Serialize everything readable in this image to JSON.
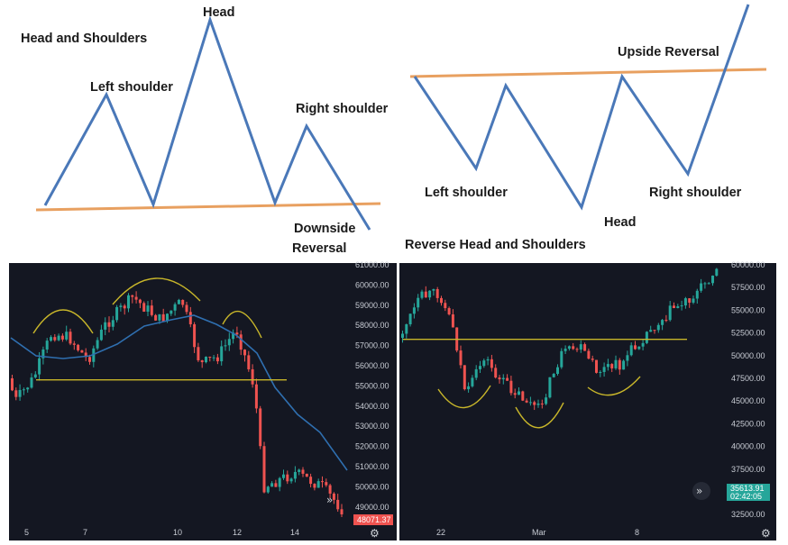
{
  "top_left": {
    "title": "Head and Shoulders",
    "head": "Head",
    "left_shoulder": "Left shoulder",
    "right_shoulder": "Right shoulder",
    "reversal_line1": "Downside",
    "reversal_line2": "Reversal"
  },
  "top_right": {
    "title": "Reverse Head and Shoulders",
    "head": "Head",
    "left_shoulder": "Left shoulder",
    "right_shoulder": "Right shoulder",
    "reversal": "Upside Reversal"
  },
  "bottom_left_chart": {
    "x_ticks": [
      "5",
      "7",
      "10",
      "12",
      "14"
    ],
    "y_ticks": [
      "61000.00",
      "60000.00",
      "59000.00",
      "58000.00",
      "57000.00",
      "56000.00",
      "55000.00",
      "54000.00",
      "53000.00",
      "52000.00",
      "51000.00",
      "50000.00",
      "49000.00"
    ],
    "price_badge": "48071.37",
    "neckline_price": 55300,
    "candle_color_up": "#26a69a",
    "candle_color_down": "#ef5350",
    "ma_color": "#2f6fb0",
    "neckline_color": "#c8b62a"
  },
  "bottom_right_chart": {
    "x_ticks": [
      "22",
      "Mar",
      "8"
    ],
    "y_ticks": [
      "60000.00",
      "57500.00",
      "55000.00",
      "52500.00",
      "50000.00",
      "47500.00",
      "45000.00",
      "42500.00",
      "40000.00",
      "37500.00",
      "35000.00",
      "32500.00"
    ],
    "price_badge_line1": "35613.91",
    "price_badge_line2": "02:42:05",
    "neckline_price": 51800,
    "neckline_color": "#c8b62a"
  },
  "icons": {
    "fast_forward": "»",
    "settings": "⚙"
  }
}
